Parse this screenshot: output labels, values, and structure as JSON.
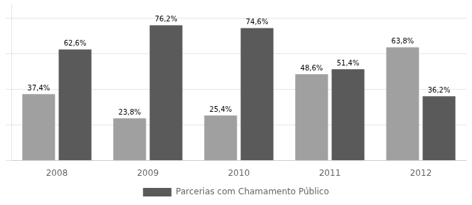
{
  "chart_data": {
    "type": "bar",
    "categories": [
      "2008",
      "2009",
      "2010",
      "2011",
      "2012"
    ],
    "series": [
      {
        "color": "#a0a0a0",
        "values": [
          37.4,
          23.8,
          25.4,
          48.6,
          63.8
        ],
        "value_labels": [
          "37,4%",
          "23,8%",
          "25,4%",
          "48,6%",
          "63,8%"
        ]
      },
      {
        "name": "Parcerias com Chamamento Público",
        "color": "#5a5a5a",
        "values": [
          62.6,
          76.2,
          74.6,
          51.4,
          36.2
        ],
        "value_labels": [
          "62,6%",
          "76,2%",
          "74,6%",
          "51,4%",
          "36,2%"
        ]
      }
    ],
    "ylim": [
      0,
      88
    ],
    "yticks": [
      0,
      20,
      40,
      60,
      80
    ],
    "grid": true,
    "data_labels": true,
    "tick_labels": "x",
    "legend": "bottom"
  }
}
